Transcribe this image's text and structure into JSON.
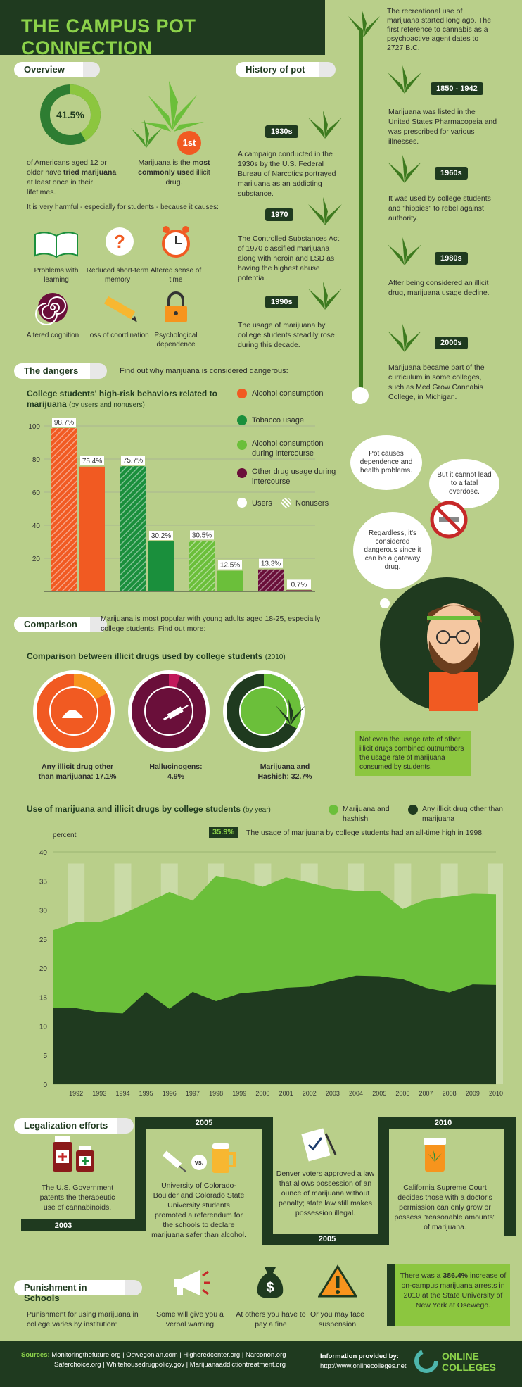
{
  "title": "THE CAMPUS POT CONNECTION",
  "intro": "The recreational use of marijuana started long ago. The first reference to cannabis as a psychoactive agent dates to 2727 B.C.",
  "overview": {
    "label": "Overview",
    "percent": "41.5%",
    "percent_value": 41.5,
    "stat_text_a": "of Americans aged 12 or older have",
    "stat_text_bold": "tried marijuana",
    "stat_text_b": "at least once in their lifetimes.",
    "rank": "1st",
    "rank_text_a": "Marijuana is the",
    "rank_text_bold": "most commonly used",
    "rank_text_b": "illicit drug.",
    "harm_intro": "It is very harmful - especially for students - because it causes:",
    "harms": [
      {
        "label": "Problems with learning",
        "icon": "book-icon"
      },
      {
        "label": "Reduced short-term memory",
        "icon": "question-icon"
      },
      {
        "label": "Altered sense of time",
        "icon": "clock-icon"
      },
      {
        "label": "Altered cognition",
        "icon": "spiral-icon"
      },
      {
        "label": "Loss of coordination",
        "icon": "pencil-icon"
      },
      {
        "label": "Psychological dependence",
        "icon": "lock-icon"
      }
    ]
  },
  "history": {
    "label": "History of pot",
    "events": [
      {
        "date": "1850 - 1942",
        "text": "Marijuana was listed in the United States Pharmacopeia and was prescribed for various illnesses."
      },
      {
        "date": "1930s",
        "text": "A campaign conducted in the 1930s by the U.S. Federal Bureau of Narcotics portrayed marijuana as an addicting substance."
      },
      {
        "date": "1960s",
        "text": "It was used by college students and \"hippies\" to rebel against authority."
      },
      {
        "date": "1970",
        "text": "The Controlled Substances Act of 1970 classified marijuana along with heroin and LSD as having the highest abuse potential."
      },
      {
        "date": "1980s",
        "text": "After being considered an illicit drug, marijuana usage decline."
      },
      {
        "date": "1990s",
        "text": "The usage of marijuana by college students steadily rose during this decade."
      },
      {
        "date": "2000s",
        "text": "Marijuana became part of the curriculum in some colleges, such as Med Grow Cannabis College, in Michigan."
      }
    ]
  },
  "dangers": {
    "label": "The dangers",
    "intro": "Find out why marijuana is considered dangerous:",
    "chart_title": "College students' high-risk behaviors related to marijuana",
    "chart_subtitle": "(by users and nonusers)",
    "legend": [
      {
        "label": "Alcohol consumption",
        "color": "#f15a22"
      },
      {
        "label": "Tobacco usage",
        "color": "#1a8f3c"
      },
      {
        "label": "Alcohol consumption during intercourse",
        "color": "#6bbf3a"
      },
      {
        "label": "Other drug usage during intercourse",
        "color": "#6a0f3a"
      }
    ],
    "users_label": "Users",
    "nonusers_label": "Nonusers",
    "bubbles": [
      "Pot causes dependence and health problems.",
      "But it cannot lead to a fatal overdose.",
      "Regardless, it's considered dangerous since it can be a gateway drug."
    ]
  },
  "comparison": {
    "label": "Comparison",
    "intro": "Marijuana is most popular with young adults aged 18-25, especially college students. Find out more:",
    "donut_title": "Comparison between illicit drugs used by college students",
    "donut_year": "(2010)",
    "donuts": [
      {
        "label": "Any illicit drug other than marijuana: 17.1%",
        "value": 17.1,
        "color": "#f7941d",
        "icon": "powder-icon"
      },
      {
        "label": "Hallucinogens: 4.9%",
        "value": 4.9,
        "color": "#c2185b",
        "icon": "syringe-icon"
      },
      {
        "label": "Marijuana and Hashish: 32.7%",
        "value": 32.7,
        "color": "#6bbf3a",
        "icon": "leaf-icon"
      }
    ],
    "note": "Not even the usage rate of other illicit drugs combined outnumbers the usage rate of marijuana consumed by students.",
    "area_title": "Use of marijuana and illicit drugs by college students",
    "area_subtitle": "(by year)",
    "area_legend": [
      "Marijuana and hashish",
      "Any illicit drug other than marijuana"
    ],
    "peak_label": "35.9%",
    "peak_note": "The usage of marijuana by college students had an all-time high in 1998.",
    "y_unit": "percent"
  },
  "chart_data": [
    {
      "type": "bar",
      "title": "College students' high-risk behaviors related to marijuana",
      "categories": [
        "Alcohol consumption",
        "Tobacco usage",
        "Alcohol consumption during intercourse",
        "Other drug usage during intercourse"
      ],
      "series": [
        {
          "name": "Users",
          "values": [
            98.7,
            75.7,
            30.5,
            13.3
          ]
        },
        {
          "name": "Nonusers",
          "values": [
            75.4,
            30.2,
            12.5,
            0.7
          ]
        }
      ],
      "ylim": [
        0,
        100
      ],
      "yticks": [
        20,
        40,
        60,
        80,
        100
      ]
    },
    {
      "type": "area",
      "title": "Use of marijuana and illicit drugs by college students",
      "x": [
        1991,
        1992,
        1993,
        1994,
        1995,
        1996,
        1997,
        1998,
        1999,
        2000,
        2001,
        2002,
        2003,
        2004,
        2005,
        2006,
        2007,
        2008,
        2009,
        2010
      ],
      "xticks": [
        1992,
        1993,
        1994,
        1995,
        1996,
        1997,
        1998,
        1999,
        2000,
        2001,
        2002,
        2003,
        2004,
        2005,
        2006,
        2007,
        2008,
        2009,
        2010
      ],
      "series": [
        {
          "name": "Marijuana and hashish",
          "values": [
            26.5,
            27.9,
            27.9,
            29.3,
            31.2,
            33.1,
            31.6,
            35.9,
            35.2,
            34.0,
            35.6,
            34.7,
            33.7,
            33.3,
            33.3,
            30.2,
            31.8,
            32.3,
            32.8,
            32.7
          ]
        },
        {
          "name": "Any illicit drug other than marijuana",
          "values": [
            13.2,
            13.1,
            12.4,
            12.2,
            15.9,
            13.0,
            15.9,
            14.3,
            15.6,
            16.0,
            16.6,
            16.8,
            17.8,
            18.7,
            18.6,
            18.1,
            16.6,
            15.8,
            17.2,
            17.1
          ]
        }
      ],
      "ylim": [
        0,
        40
      ],
      "yticks": [
        0,
        5,
        10,
        15,
        20,
        25,
        30,
        35,
        40
      ]
    }
  ],
  "legalization": {
    "label": "Legalization efforts",
    "items": [
      {
        "year": "2003",
        "text": "The U.S. Government patents the therapeutic use of cannabinoids."
      },
      {
        "year": "2005",
        "text": "University of Colorado-Boulder and Colorado State University students promoted a referendum for the schools to declare marijuana safer than alcohol."
      },
      {
        "year": "2005",
        "text": "Denver voters approved a law that allows possession of an ounce of marijuana without penalty; state law still makes possession illegal."
      },
      {
        "year": "2010",
        "text": "California Supreme Court decides those with a doctor's permission can only grow or possess \"reasonable amounts\" of marijuana."
      }
    ],
    "vs": "vs."
  },
  "punishment": {
    "label": "Punishment in Schools",
    "intro": "Punishment for using marijuana in college varies by institution:",
    "items": [
      {
        "text": "Some will give you a verbal warning",
        "icon": "megaphone-icon"
      },
      {
        "text": "At others you have to pay a fine",
        "icon": "money-bag-icon"
      },
      {
        "text": "Or you may face suspension",
        "icon": "warning-icon"
      }
    ],
    "stat_a": "There was a",
    "stat_bold": "386.4%",
    "stat_b": "increase of on-campus marijuana arrests in 2010 at the State University of New York at Osewego."
  },
  "footer": {
    "sources_label": "Sources:",
    "sources_line1": "Monitoringthefuture.org | Oswegonian.com | Higheredcenter.org | Narconon.org",
    "sources_line2": "Saferchoice.org | Whitehousedrugpolicy.gov | Marijuanaaddictiontreatment.org",
    "provided_label": "Information provided by:",
    "provided_url": "http://www.onlinecolleges.net",
    "logo_line1": "ONLINE",
    "logo_line2": "COLLEGES"
  }
}
